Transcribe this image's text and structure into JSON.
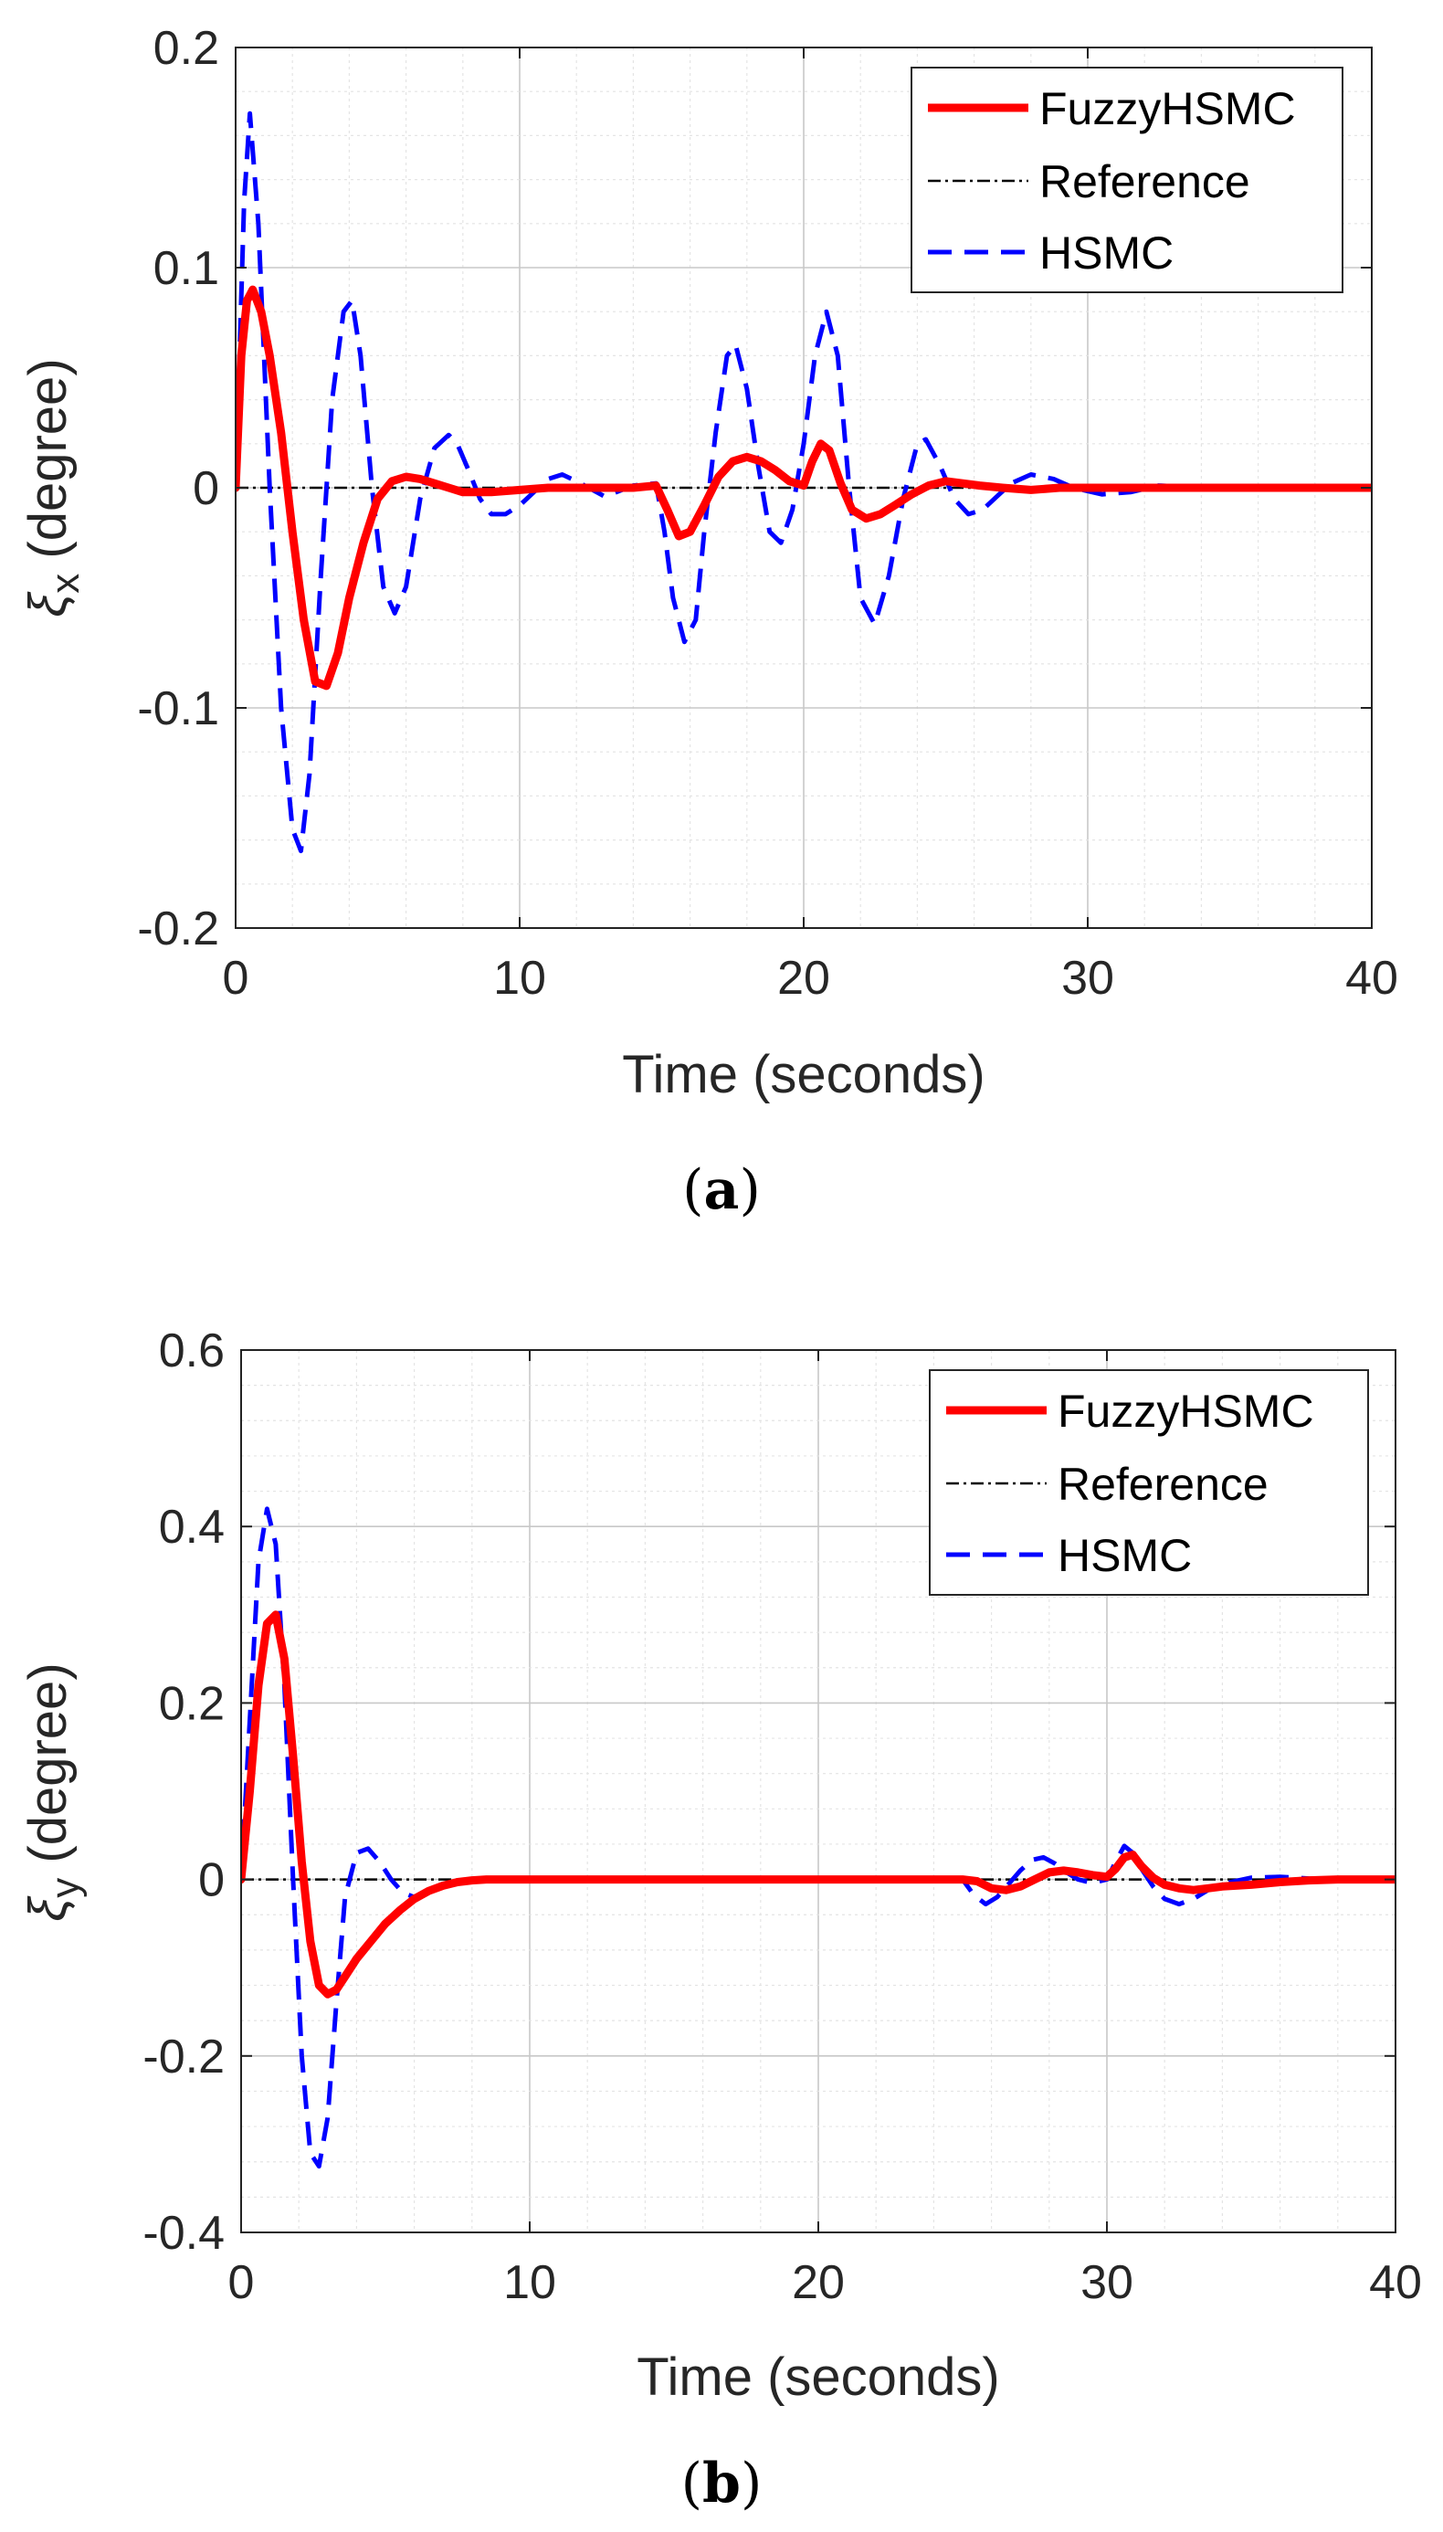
{
  "chart_data": [
    {
      "type": "line",
      "panel_label": "a",
      "xlabel": "Time (seconds)",
      "ylabel_symbol": "ξ",
      "ylabel_subscript": "x",
      "ylabel_unit": "(degree)",
      "xlim": [
        0,
        40
      ],
      "ylim": [
        -0.2,
        0.2
      ],
      "xticks": [
        0,
        10,
        20,
        30,
        40
      ],
      "xtick_labels": [
        "0",
        "10",
        "20",
        "30",
        "40"
      ],
      "yticks": [
        -0.2,
        -0.1,
        0,
        0.1,
        0.2
      ],
      "ytick_labels": [
        "-0.2",
        "-0.1",
        "0",
        "0.1",
        "0.2"
      ],
      "grid": true,
      "legend_position": "top-right",
      "series": [
        {
          "name": "FuzzyHSMC",
          "color": "#ff0000",
          "style": "solid",
          "x": [
            0,
            0.2,
            0.4,
            0.6,
            0.9,
            1.2,
            1.6,
            2.0,
            2.4,
            2.8,
            3.2,
            3.6,
            4.0,
            4.5,
            5.0,
            5.5,
            6.0,
            6.5,
            7.0,
            7.5,
            8.0,
            9.0,
            10,
            11,
            12,
            13,
            14,
            14.8,
            15.2,
            15.6,
            16.0,
            16.5,
            17.0,
            17.5,
            18.0,
            18.5,
            19.0,
            19.5,
            20.0,
            20.3,
            20.6,
            20.9,
            21.3,
            21.7,
            22.2,
            22.7,
            23.2,
            23.8,
            24.4,
            25.0,
            25.6,
            26.2,
            27,
            28,
            29,
            30,
            32,
            35,
            40
          ],
          "y": [
            0,
            0.06,
            0.085,
            0.09,
            0.08,
            0.06,
            0.025,
            -0.02,
            -0.06,
            -0.088,
            -0.09,
            -0.075,
            -0.05,
            -0.025,
            -0.005,
            0.003,
            0.005,
            0.004,
            0.002,
            0,
            -0.002,
            -0.002,
            -0.001,
            0,
            0,
            0,
            0,
            0.001,
            -0.01,
            -0.022,
            -0.02,
            -0.008,
            0.005,
            0.012,
            0.014,
            0.012,
            0.008,
            0.003,
            0.001,
            0.012,
            0.02,
            0.017,
            0.002,
            -0.01,
            -0.014,
            -0.012,
            -0.008,
            -0.003,
            0.001,
            0.003,
            0.002,
            0.001,
            0,
            -0.001,
            0,
            0,
            0,
            0,
            0
          ]
        },
        {
          "name": "Reference",
          "color": "#000000",
          "style": "dashdot",
          "x": [
            0,
            40
          ],
          "y": [
            0,
            0
          ]
        },
        {
          "name": "HSMC",
          "color": "#0000ff",
          "style": "dashed",
          "x": [
            0,
            0.3,
            0.5,
            0.8,
            1.2,
            1.6,
            2.0,
            2.3,
            2.6,
            3.0,
            3.4,
            3.8,
            4.1,
            4.4,
            4.8,
            5.2,
            5.6,
            6.0,
            6.5,
            7.0,
            7.5,
            7.8,
            8.2,
            8.6,
            9.0,
            9.5,
            10,
            10.5,
            11,
            11.5,
            12,
            13,
            14,
            14.8,
            15.1,
            15.4,
            15.8,
            16.2,
            16.5,
            16.9,
            17.3,
            17.6,
            18.0,
            18.4,
            18.8,
            19.2,
            19.6,
            20.0,
            20.4,
            20.8,
            21.2,
            21.6,
            22.0,
            22.5,
            23.0,
            23.5,
            24.0,
            24.3,
            24.8,
            25.3,
            25.8,
            26.3,
            26.8,
            27.3,
            28.0,
            28.8,
            29.5,
            30.5,
            31.5,
            32.5,
            34,
            36,
            40
          ],
          "y": [
            0,
            0.13,
            0.17,
            0.12,
            0,
            -0.1,
            -0.155,
            -0.165,
            -0.13,
            -0.04,
            0.04,
            0.08,
            0.085,
            0.06,
            0.0,
            -0.045,
            -0.057,
            -0.045,
            -0.005,
            0.018,
            0.024,
            0.02,
            0.008,
            -0.005,
            -0.012,
            -0.012,
            -0.008,
            -0.002,
            0.004,
            0.006,
            0.003,
            -0.004,
            0.001,
            0.002,
            -0.02,
            -0.05,
            -0.07,
            -0.06,
            -0.02,
            0.025,
            0.06,
            0.065,
            0.045,
            0.01,
            -0.02,
            -0.025,
            -0.01,
            0.02,
            0.06,
            0.08,
            0.06,
            0.0,
            -0.05,
            -0.062,
            -0.04,
            -0.005,
            0.02,
            0.022,
            0.01,
            -0.005,
            -0.012,
            -0.01,
            -0.004,
            0.002,
            0.006,
            0.004,
            0.0,
            -0.003,
            -0.002,
            0.001,
            0.0,
            0.0,
            0.0
          ]
        }
      ]
    },
    {
      "type": "line",
      "panel_label": "b",
      "xlabel": "Time (seconds)",
      "ylabel_symbol": "ξ",
      "ylabel_subscript": "y",
      "ylabel_unit": "(degree)",
      "xlim": [
        0,
        40
      ],
      "ylim": [
        -0.4,
        0.6
      ],
      "xticks": [
        0,
        10,
        20,
        30,
        40
      ],
      "xtick_labels": [
        "0",
        "10",
        "20",
        "30",
        "40"
      ],
      "yticks": [
        -0.4,
        -0.2,
        0,
        0.2,
        0.4,
        0.6
      ],
      "ytick_labels": [
        "-0.4",
        "-0.2",
        "0",
        "0.2",
        "0.4",
        "0.6"
      ],
      "grid": true,
      "legend_position": "top-right",
      "series": [
        {
          "name": "FuzzyHSMC",
          "color": "#ff0000",
          "style": "solid",
          "x": [
            0,
            0.3,
            0.6,
            0.9,
            1.2,
            1.5,
            1.8,
            2.1,
            2.4,
            2.7,
            3.0,
            3.3,
            3.6,
            4.0,
            4.5,
            5.0,
            5.5,
            6.0,
            6.5,
            7.0,
            7.5,
            8.0,
            8.5,
            9.0,
            10,
            12,
            15,
            20,
            24.5,
            25.0,
            25.5,
            26.0,
            26.5,
            27.0,
            27.5,
            28.0,
            28.5,
            29.0,
            29.5,
            30.0,
            30.3,
            30.6,
            30.9,
            31.2,
            31.6,
            32.0,
            32.5,
            33.0,
            33.5,
            34,
            35,
            36,
            37,
            38,
            40
          ],
          "y": [
            0,
            0.1,
            0.22,
            0.29,
            0.3,
            0.25,
            0.14,
            0.02,
            -0.07,
            -0.12,
            -0.13,
            -0.125,
            -0.11,
            -0.09,
            -0.07,
            -0.05,
            -0.035,
            -0.022,
            -0.013,
            -0.007,
            -0.003,
            -0.001,
            0,
            0,
            0,
            0,
            0,
            0,
            0,
            0,
            -0.002,
            -0.01,
            -0.012,
            -0.008,
            0.0,
            0.008,
            0.01,
            0.008,
            0.005,
            0.003,
            0.012,
            0.025,
            0.028,
            0.015,
            0.002,
            -0.006,
            -0.01,
            -0.012,
            -0.01,
            -0.008,
            -0.006,
            -0.003,
            -0.001,
            0,
            0
          ]
        },
        {
          "name": "Reference",
          "color": "#000000",
          "style": "dashdot",
          "x": [
            0,
            40
          ],
          "y": [
            0,
            0
          ]
        },
        {
          "name": "HSMC",
          "color": "#0000ff",
          "style": "dashed",
          "x": [
            0,
            0.3,
            0.6,
            0.9,
            1.2,
            1.5,
            1.8,
            2.1,
            2.4,
            2.7,
            3.0,
            3.3,
            3.6,
            4.0,
            4.4,
            4.8,
            5.2,
            5.6,
            6.0,
            6.5,
            7.0,
            7.5,
            8.0,
            8.5,
            9.0,
            10,
            12,
            15,
            20,
            24.5,
            25.0,
            25.4,
            25.8,
            26.2,
            26.6,
            27.0,
            27.4,
            27.8,
            28.2,
            28.6,
            29.0,
            29.5,
            30.0,
            30.3,
            30.6,
            30.9,
            31.2,
            31.6,
            32.0,
            32.5,
            33.0,
            33.5,
            34,
            35,
            36,
            37,
            38,
            40
          ],
          "y": [
            0,
            0.18,
            0.36,
            0.42,
            0.38,
            0.22,
            0.0,
            -0.2,
            -0.31,
            -0.325,
            -0.27,
            -0.14,
            -0.02,
            0.03,
            0.035,
            0.02,
            0.0,
            -0.015,
            -0.02,
            -0.014,
            -0.007,
            -0.003,
            -0.001,
            0,
            0,
            0,
            0,
            0,
            0,
            0,
            0,
            -0.018,
            -0.028,
            -0.02,
            -0.005,
            0.01,
            0.022,
            0.025,
            0.018,
            0.008,
            0.0,
            -0.004,
            0.0,
            0.02,
            0.038,
            0.03,
            0.012,
            -0.008,
            -0.022,
            -0.028,
            -0.022,
            -0.012,
            -0.005,
            0.002,
            0.003,
            0.001,
            0,
            0
          ]
        }
      ]
    }
  ]
}
